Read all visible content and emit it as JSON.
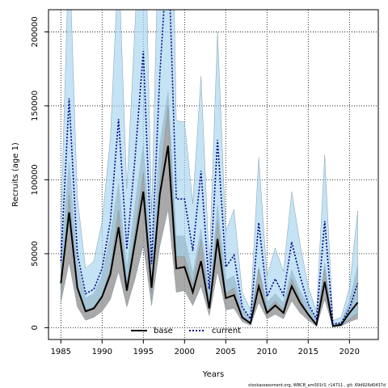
{
  "chart_data": {
    "type": "line",
    "xlabel": "Years",
    "ylabel": "Recruits (age 1)",
    "xlim": [
      1983.5,
      2023.5
    ],
    "ylim": [
      -8000,
      215000
    ],
    "x_ticks": [
      1985,
      1990,
      1995,
      2000,
      2005,
      2010,
      2015,
      2020
    ],
    "y_ticks": [
      0,
      50000,
      100000,
      150000,
      200000
    ],
    "grid": true,
    "legend_position": "bottom-center",
    "footnote": "stockassessment.org, WBCB_am001t3, r14711 , git: 69d926d0437d",
    "x": [
      1985,
      1986,
      1987,
      1988,
      1989,
      1990,
      1991,
      1992,
      1993,
      1994,
      1995,
      1996,
      1997,
      1998,
      1999,
      2000,
      2001,
      2002,
      2003,
      2004,
      2005,
      2006,
      2007,
      2008,
      2009,
      2010,
      2011,
      2012,
      2013,
      2014,
      2015,
      2016,
      2017,
      2018,
      2019,
      2020,
      2021
    ],
    "series": [
      {
        "name": "base",
        "color": "#000000",
        "band_color": "#9a9a9a",
        "values": [
          30000,
          78000,
          27000,
          11000,
          13000,
          21000,
          36000,
          68000,
          25000,
          58000,
          92000,
          27000,
          90000,
          123000,
          40000,
          41000,
          24000,
          45000,
          13000,
          60000,
          20000,
          22000,
          7000,
          3000,
          28000,
          10000,
          15000,
          10000,
          28000,
          17000,
          9000,
          2000,
          31000,
          1000,
          2000,
          10000,
          17000
        ],
        "lower": [
          17000,
          44000,
          14000,
          5000,
          7000,
          11000,
          19000,
          38000,
          14000,
          33000,
          56000,
          15000,
          55000,
          80000,
          24000,
          25000,
          15000,
          28000,
          8000,
          38000,
          12000,
          13000,
          4000,
          1500,
          17000,
          6000,
          9000,
          6000,
          18000,
          10000,
          5000,
          1000,
          19000,
          500,
          1000,
          4000,
          6000
        ],
        "upper": [
          45000,
          112000,
          44000,
          20000,
          23000,
          35000,
          62000,
          98000,
          40000,
          84000,
          124000,
          42000,
          124000,
          160000,
          62000,
          62000,
          37000,
          67000,
          22000,
          83000,
          32000,
          35000,
          13000,
          6000,
          41000,
          17000,
          23000,
          17000,
          39000,
          25000,
          15000,
          5000,
          44000,
          2500,
          4000,
          18000,
          42000
        ]
      },
      {
        "name": "current",
        "color": "#00008b",
        "band_color": "#a4d4ee",
        "values": [
          45000,
          155000,
          50000,
          23000,
          26000,
          40000,
          72000,
          141000,
          53000,
          115000,
          187000,
          43000,
          171000,
          260000,
          87000,
          87000,
          52000,
          106000,
          26000,
          127000,
          41000,
          49000,
          14000,
          6000,
          71000,
          21000,
          33000,
          22000,
          58000,
          35000,
          16000,
          6000,
          72000,
          2500,
          3000,
          13000,
          30000
        ],
        "lower": [
          25000,
          90000,
          28000,
          12000,
          14000,
          22000,
          40000,
          80000,
          30000,
          65000,
          105000,
          24000,
          98000,
          150000,
          48000,
          48000,
          29000,
          60000,
          14000,
          72000,
          23000,
          27000,
          7000,
          3000,
          40000,
          12000,
          18000,
          12000,
          33000,
          20000,
          9000,
          3000,
          40000,
          1200,
          1500,
          6000,
          10000
        ],
        "upper": [
          70000,
          260000,
          88000,
          40000,
          45000,
          72000,
          128000,
          250000,
          94000,
          205000,
          330000,
          77000,
          300000,
          460000,
          140000,
          139000,
          84000,
          170000,
          42000,
          200000,
          65000,
          80000,
          24000,
          12000,
          115000,
          35000,
          54000,
          38000,
          92000,
          57000,
          28000,
          11000,
          117000,
          5000,
          7000,
          27000,
          79000
        ]
      }
    ]
  }
}
